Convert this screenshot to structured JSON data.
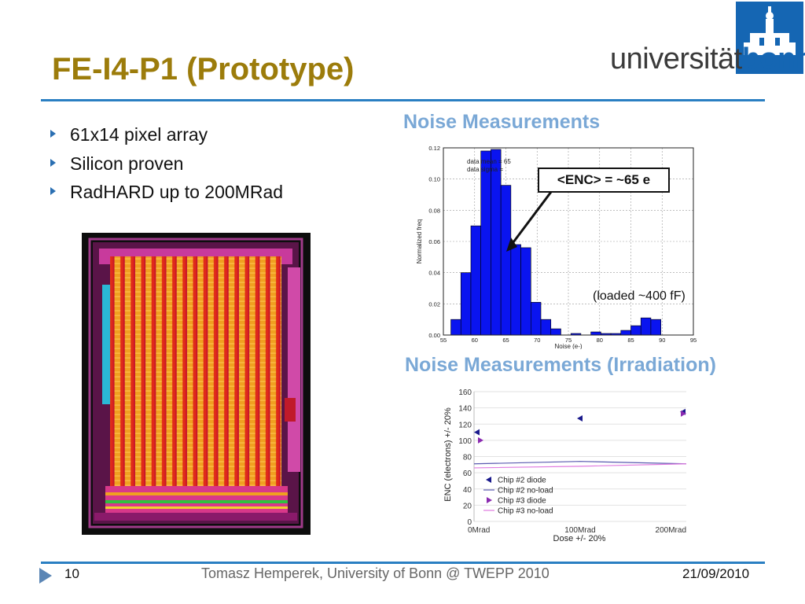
{
  "slide": {
    "title": "FE-I4-P1 (Prototype)",
    "bullets": [
      "61x14 pixel array",
      "Silicon proven",
      "RadHARD up to 200MRad"
    ]
  },
  "logo": {
    "text_a": "universität",
    "text_b": "bonn",
    "brand_color": "#1566b3"
  },
  "noise": {
    "heading": "Noise Measurements",
    "callout": "<ENC> = ~65 e",
    "note": "(loaded ~400 fF)"
  },
  "irradiation": {
    "heading": "Noise Measurements (Irradiation)"
  },
  "footer": {
    "page": "10",
    "text": "Tomasz Hemperek, University of Bonn @ TWEPP 2010",
    "date": "21/09/2010"
  },
  "colors": {
    "title": "#9c7c0b",
    "accent": "#2a7fc2",
    "heading": "#7aa8d6",
    "bar": "#0a14f0"
  },
  "chart_data": [
    {
      "type": "bar",
      "xlabel": "Noise (e-)",
      "ylabel": "Normalized freq",
      "xlim": [
        55,
        95
      ],
      "ylim": [
        0,
        0.12
      ],
      "xticks": [
        55,
        60,
        65,
        70,
        75,
        80,
        85,
        90,
        95
      ],
      "yticks": [
        0.0,
        0.02,
        0.04,
        0.06,
        0.08,
        0.1,
        0.12
      ],
      "ytick_labels": [
        "0.00",
        "0.02",
        "0.04",
        "0.06",
        "0.08",
        "0.10",
        "0.12"
      ],
      "legend": [
        "data mean = 65",
        "data sigma ="
      ],
      "bin_width": 1.6,
      "x": [
        57,
        58.6,
        60.2,
        61.8,
        63.4,
        65,
        66.6,
        68.2,
        69.8,
        71.4,
        73,
        74.6,
        76.2,
        77.8,
        79.4,
        81,
        82.6,
        84.2,
        85.8,
        87.4,
        89,
        90.6
      ],
      "values": [
        0.01,
        0.04,
        0.07,
        0.118,
        0.119,
        0.096,
        0.058,
        0.056,
        0.021,
        0.01,
        0.004,
        0.0,
        0.001,
        0.0,
        0.002,
        0.001,
        0.001,
        0.003,
        0.006,
        0.011,
        0.01,
        0.0
      ],
      "grid": true
    },
    {
      "type": "scatter",
      "xlabel": "Dose +/- 20%",
      "ylabel": "ENC (electrons) +/- 20%",
      "categories": [
        "0Mrad",
        "100Mrad",
        "200Mrad"
      ],
      "ylim": [
        0,
        160
      ],
      "yticks": [
        0,
        20,
        40,
        60,
        80,
        100,
        120,
        140,
        160
      ],
      "grid": true,
      "legend_position": "bottom-left",
      "series": [
        {
          "name": "Chip #2 diode",
          "kind": "points",
          "color": "#1a1a8c",
          "points": [
            [
              0,
              110
            ],
            [
              100,
              127
            ],
            [
              200,
              135
            ]
          ]
        },
        {
          "name": "Chip #2 no-load",
          "kind": "line",
          "color": "#5a5ab0",
          "points": [
            [
              0,
              71
            ],
            [
              100,
              74
            ],
            [
              200,
              71
            ]
          ]
        },
        {
          "name": "Chip #3 diode",
          "kind": "points",
          "color": "#8a2ab0",
          "points": [
            [
              0,
              100
            ],
            [
              200,
              133
            ]
          ]
        },
        {
          "name": "Chip #3 no-load",
          "kind": "line",
          "color": "#e07ae0",
          "points": [
            [
              0,
              66
            ],
            [
              100,
              68
            ],
            [
              200,
              71
            ]
          ]
        }
      ]
    }
  ]
}
